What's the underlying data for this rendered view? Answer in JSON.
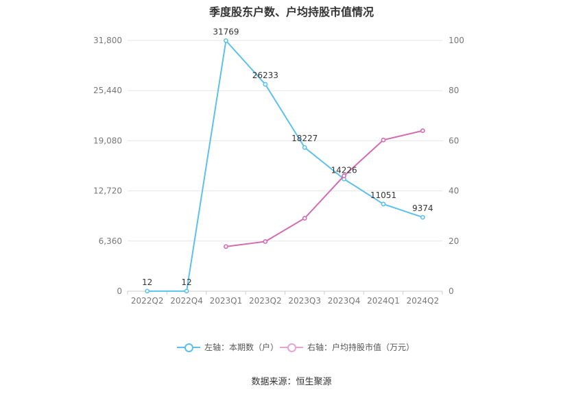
{
  "chart_data": {
    "type": "line",
    "title": "季度股东户数、户均持股市值情况",
    "categories": [
      "2022Q2",
      "2022Q4",
      "2023Q1",
      "2023Q2",
      "2023Q3",
      "2023Q4",
      "2024Q1",
      "2024Q2"
    ],
    "series": [
      {
        "name": "左轴：本期数（户）",
        "axis": "left",
        "color": "#5bc0ef",
        "values": [
          12,
          12,
          31769,
          26233,
          18227,
          14226,
          11051,
          9374
        ],
        "labels": [
          "12",
          "12",
          "31769",
          "26233",
          "18227",
          "14226",
          "11051",
          "9374"
        ]
      },
      {
        "name": "右轴：户均持股市值（万元）",
        "axis": "right",
        "color": "#d36bb3",
        "values": [
          null,
          null,
          17.8,
          19.8,
          29.1,
          46.0,
          60.3,
          64.0
        ]
      }
    ],
    "y_left": {
      "ylim": [
        0,
        31800
      ],
      "ticks": [
        0,
        6360,
        12720,
        19080,
        25440,
        31800
      ],
      "tick_labels": [
        "0",
        "6,360",
        "12,720",
        "19,080",
        "25,440",
        "31,800"
      ]
    },
    "y_right": {
      "ylim": [
        0,
        100
      ],
      "ticks": [
        0,
        20,
        40,
        60,
        80,
        100
      ],
      "tick_labels": [
        "0",
        "20",
        "40",
        "60",
        "80",
        "100"
      ]
    },
    "grid": true,
    "legend_position": "bottom"
  },
  "source": "数据来源：恒生聚源"
}
